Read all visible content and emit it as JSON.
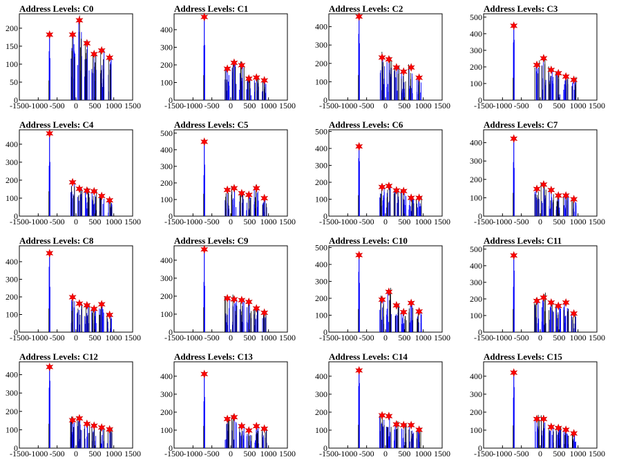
{
  "chart_data": [
    {
      "title": "Address Levels: C0",
      "type": "bar",
      "xlim": [
        -1500,
        1500
      ],
      "ylim": [
        0,
        240
      ],
      "yticks": [
        0,
        50,
        100,
        150,
        200
      ],
      "peaks": [
        {
          "x": -700,
          "y": 182
        },
        {
          "x": -90,
          "y": 182
        },
        {
          "x": 90,
          "y": 222
        },
        {
          "x": 290,
          "y": 158
        },
        {
          "x": 480,
          "y": 128
        },
        {
          "x": 680,
          "y": 138
        },
        {
          "x": 890,
          "y": 118
        }
      ]
    },
    {
      "title": "Address Levels: C1",
      "type": "bar",
      "xlim": [
        -1500,
        1500
      ],
      "ylim": [
        0,
        490
      ],
      "yticks": [
        0,
        100,
        200,
        300,
        400
      ],
      "peaks": [
        {
          "x": -700,
          "y": 472
        },
        {
          "x": -90,
          "y": 178
        },
        {
          "x": 90,
          "y": 212
        },
        {
          "x": 290,
          "y": 198
        },
        {
          "x": 480,
          "y": 122
        },
        {
          "x": 680,
          "y": 128
        },
        {
          "x": 890,
          "y": 112
        }
      ]
    },
    {
      "title": "Address Levels: C2",
      "type": "bar",
      "xlim": [
        -1500,
        1500
      ],
      "ylim": [
        0,
        470
      ],
      "yticks": [
        0,
        100,
        200,
        300,
        400
      ],
      "peaks": [
        {
          "x": -700,
          "y": 455
        },
        {
          "x": -90,
          "y": 232
        },
        {
          "x": 90,
          "y": 222
        },
        {
          "x": 290,
          "y": 178
        },
        {
          "x": 480,
          "y": 155
        },
        {
          "x": 680,
          "y": 178
        },
        {
          "x": 890,
          "y": 122
        }
      ]
    },
    {
      "title": "Address Levels: C3",
      "type": "bar",
      "xlim": [
        -1500,
        1500
      ],
      "ylim": [
        0,
        520
      ],
      "yticks": [
        0,
        100,
        200,
        300,
        400,
        500
      ],
      "peaks": [
        {
          "x": -700,
          "y": 448
        },
        {
          "x": -90,
          "y": 212
        },
        {
          "x": 90,
          "y": 252
        },
        {
          "x": 290,
          "y": 182
        },
        {
          "x": 480,
          "y": 162
        },
        {
          "x": 680,
          "y": 142
        },
        {
          "x": 890,
          "y": 122
        }
      ]
    },
    {
      "title": "Address Levels: C4",
      "type": "bar",
      "xlim": [
        -1500,
        1500
      ],
      "ylim": [
        0,
        480
      ],
      "yticks": [
        0,
        100,
        200,
        300,
        400
      ],
      "peaks": [
        {
          "x": -700,
          "y": 460
        },
        {
          "x": -90,
          "y": 188
        },
        {
          "x": 90,
          "y": 152
        },
        {
          "x": 290,
          "y": 142
        },
        {
          "x": 480,
          "y": 138
        },
        {
          "x": 680,
          "y": 112
        },
        {
          "x": 890,
          "y": 88
        }
      ]
    },
    {
      "title": "Address Levels: C5",
      "type": "bar",
      "xlim": [
        -1500,
        1500
      ],
      "ylim": [
        0,
        520
      ],
      "yticks": [
        0,
        100,
        200,
        300,
        400,
        500
      ],
      "peaks": [
        {
          "x": -700,
          "y": 448
        },
        {
          "x": -90,
          "y": 158
        },
        {
          "x": 90,
          "y": 168
        },
        {
          "x": 290,
          "y": 138
        },
        {
          "x": 480,
          "y": 128
        },
        {
          "x": 680,
          "y": 168
        },
        {
          "x": 890,
          "y": 108
        }
      ]
    },
    {
      "title": "Address Levels: C6",
      "type": "bar",
      "xlim": [
        -1500,
        1500
      ],
      "ylim": [
        0,
        510
      ],
      "yticks": [
        0,
        100,
        200,
        300,
        400,
        500
      ],
      "peaks": [
        {
          "x": -700,
          "y": 412
        },
        {
          "x": -90,
          "y": 172
        },
        {
          "x": 90,
          "y": 178
        },
        {
          "x": 290,
          "y": 152
        },
        {
          "x": 480,
          "y": 148
        },
        {
          "x": 680,
          "y": 108
        },
        {
          "x": 890,
          "y": 108
        }
      ]
    },
    {
      "title": "Address Levels: C7",
      "type": "bar",
      "xlim": [
        -1500,
        1500
      ],
      "ylim": [
        0,
        470
      ],
      "yticks": [
        0,
        100,
        200,
        300,
        400
      ],
      "peaks": [
        {
          "x": -700,
          "y": 422
        },
        {
          "x": -90,
          "y": 148
        },
        {
          "x": 90,
          "y": 172
        },
        {
          "x": 290,
          "y": 142
        },
        {
          "x": 480,
          "y": 112
        },
        {
          "x": 680,
          "y": 112
        },
        {
          "x": 890,
          "y": 92
        }
      ]
    },
    {
      "title": "Address Levels: C8",
      "type": "bar",
      "xlim": [
        -1500,
        1500
      ],
      "ylim": [
        0,
        490
      ],
      "yticks": [
        0,
        100,
        200,
        300,
        400
      ],
      "peaks": [
        {
          "x": -700,
          "y": 448
        },
        {
          "x": -90,
          "y": 198
        },
        {
          "x": 90,
          "y": 162
        },
        {
          "x": 290,
          "y": 152
        },
        {
          "x": 480,
          "y": 132
        },
        {
          "x": 680,
          "y": 158
        },
        {
          "x": 890,
          "y": 98
        }
      ]
    },
    {
      "title": "Address Levels: C9",
      "type": "bar",
      "xlim": [
        -1500,
        1500
      ],
      "ylim": [
        0,
        480
      ],
      "yticks": [
        0,
        100,
        200,
        300,
        400
      ],
      "peaks": [
        {
          "x": -700,
          "y": 460
        },
        {
          "x": -90,
          "y": 188
        },
        {
          "x": 90,
          "y": 182
        },
        {
          "x": 290,
          "y": 178
        },
        {
          "x": 480,
          "y": 168
        },
        {
          "x": 680,
          "y": 132
        },
        {
          "x": 890,
          "y": 108
        }
      ]
    },
    {
      "title": "Address Levels: C10",
      "type": "bar",
      "xlim": [
        -1500,
        1500
      ],
      "ylim": [
        0,
        510
      ],
      "yticks": [
        0,
        100,
        200,
        300,
        400,
        500
      ],
      "peaks": [
        {
          "x": -700,
          "y": 455
        },
        {
          "x": -90,
          "y": 192
        },
        {
          "x": 90,
          "y": 238
        },
        {
          "x": 290,
          "y": 158
        },
        {
          "x": 480,
          "y": 118
        },
        {
          "x": 680,
          "y": 172
        },
        {
          "x": 890,
          "y": 122
        }
      ]
    },
    {
      "title": "Address Levels: C11",
      "type": "bar",
      "xlim": [
        -1500,
        1500
      ],
      "ylim": [
        0,
        520
      ],
      "yticks": [
        0,
        100,
        200,
        300,
        400,
        500
      ],
      "peaks": [
        {
          "x": -700,
          "y": 462
        },
        {
          "x": -90,
          "y": 188
        },
        {
          "x": 90,
          "y": 208
        },
        {
          "x": 290,
          "y": 178
        },
        {
          "x": 480,
          "y": 158
        },
        {
          "x": 680,
          "y": 178
        },
        {
          "x": 890,
          "y": 112
        }
      ]
    },
    {
      "title": "Address Levels: C12",
      "type": "bar",
      "xlim": [
        -1500,
        1500
      ],
      "ylim": [
        0,
        470
      ],
      "yticks": [
        0,
        100,
        200,
        300,
        400
      ],
      "peaks": [
        {
          "x": -700,
          "y": 442
        },
        {
          "x": -90,
          "y": 152
        },
        {
          "x": 90,
          "y": 162
        },
        {
          "x": 290,
          "y": 132
        },
        {
          "x": 480,
          "y": 122
        },
        {
          "x": 680,
          "y": 112
        },
        {
          "x": 890,
          "y": 102
        }
      ]
    },
    {
      "title": "Address Levels: C13",
      "type": "bar",
      "xlim": [
        -1500,
        1500
      ],
      "ylim": [
        0,
        480
      ],
      "yticks": [
        0,
        100,
        200,
        300,
        400
      ],
      "peaks": [
        {
          "x": -700,
          "y": 412
        },
        {
          "x": -90,
          "y": 162
        },
        {
          "x": 90,
          "y": 172
        },
        {
          "x": 290,
          "y": 122
        },
        {
          "x": 480,
          "y": 98
        },
        {
          "x": 680,
          "y": 122
        },
        {
          "x": 890,
          "y": 108
        }
      ]
    },
    {
      "title": "Address Levels: C14",
      "type": "bar",
      "xlim": [
        -1500,
        1500
      ],
      "ylim": [
        0,
        480
      ],
      "yticks": [
        0,
        100,
        200,
        300,
        400
      ],
      "peaks": [
        {
          "x": -700,
          "y": 432
        },
        {
          "x": -90,
          "y": 182
        },
        {
          "x": 90,
          "y": 178
        },
        {
          "x": 290,
          "y": 132
        },
        {
          "x": 480,
          "y": 128
        },
        {
          "x": 680,
          "y": 128
        },
        {
          "x": 890,
          "y": 102
        }
      ]
    },
    {
      "title": "Address Levels: C15",
      "type": "bar",
      "xlim": [
        -1500,
        1500
      ],
      "ylim": [
        0,
        480
      ],
      "yticks": [
        0,
        100,
        200,
        300,
        400
      ],
      "peaks": [
        {
          "x": -700,
          "y": 420
        },
        {
          "x": -90,
          "y": 162
        },
        {
          "x": 90,
          "y": 162
        },
        {
          "x": 290,
          "y": 118
        },
        {
          "x": 480,
          "y": 112
        },
        {
          "x": 680,
          "y": 102
        },
        {
          "x": 890,
          "y": 82
        }
      ]
    }
  ],
  "xticks": [
    -1500,
    -1000,
    -500,
    0,
    500,
    1000,
    1500
  ],
  "colors": {
    "histogram": "#0000ff",
    "overlay": "#000000",
    "marker": "#ff0000",
    "marker_edge": "#cc0000"
  },
  "marker_icon": "star-icon"
}
